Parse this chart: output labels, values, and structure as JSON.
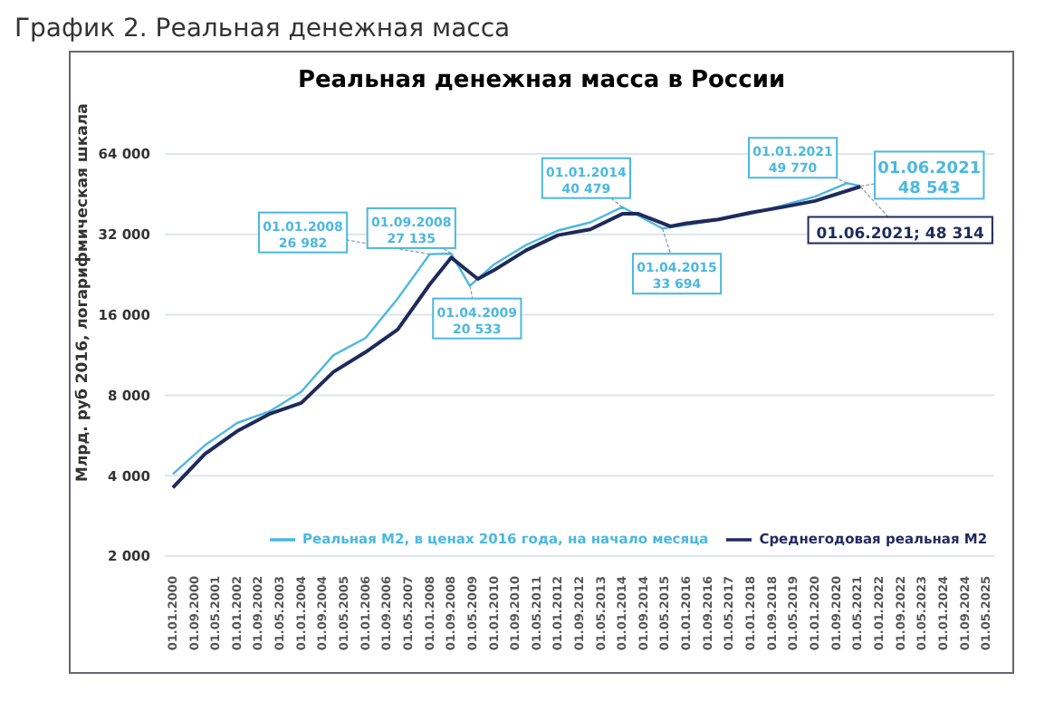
{
  "chart_data": {
    "type": "line",
    "title": "График 2. Реальная денежная масса",
    "subtitle": "Реальная денежная масса в России",
    "ylabel": "Млрд. руб 2016, логарифмическая шкала",
    "log": "y",
    "grid": "y",
    "legend": "bottom",
    "marker": "none",
    "line_style": "solid",
    "ylim": [
      2000,
      64000
    ],
    "yticks": [
      {
        "value": 2000,
        "label": "2 000"
      },
      {
        "value": 4000,
        "label": "4 000"
      },
      {
        "value": 8000,
        "label": "8 000"
      },
      {
        "value": 16000,
        "label": "16 000"
      },
      {
        "value": 32000,
        "label": "32 000"
      },
      {
        "value": 64000,
        "label": "64 000"
      }
    ],
    "xlim": [
      "1999-10-01",
      "2025-08-01"
    ],
    "xticks": [
      {
        "value": "2000-01-01",
        "label": "01.01.2000"
      },
      {
        "value": "2000-09-01",
        "label": "01.09.2000"
      },
      {
        "value": "2001-05-01",
        "label": "01.05.2001"
      },
      {
        "value": "2002-01-01",
        "label": "01.01.2002"
      },
      {
        "value": "2002-09-01",
        "label": "01.09.2002"
      },
      {
        "value": "2003-05-01",
        "label": "01.05.2003"
      },
      {
        "value": "2004-01-01",
        "label": "01.01.2004"
      },
      {
        "value": "2004-09-01",
        "label": "01.09.2004"
      },
      {
        "value": "2005-05-01",
        "label": "01.05.2005"
      },
      {
        "value": "2006-01-01",
        "label": "01.01.2006"
      },
      {
        "value": "2006-09-01",
        "label": "01.09.2006"
      },
      {
        "value": "2007-05-01",
        "label": "01.05.2007"
      },
      {
        "value": "2008-01-01",
        "label": "01.01.2008"
      },
      {
        "value": "2008-09-01",
        "label": "01.09.2008"
      },
      {
        "value": "2009-05-01",
        "label": "01.05.2009"
      },
      {
        "value": "2010-01-01",
        "label": "01.01.2010"
      },
      {
        "value": "2010-09-01",
        "label": "01.09.2010"
      },
      {
        "value": "2011-05-01",
        "label": "01.05.2011"
      },
      {
        "value": "2012-01-01",
        "label": "01.01.2012"
      },
      {
        "value": "2012-09-01",
        "label": "01.09.2012"
      },
      {
        "value": "2013-05-01",
        "label": "01.05.2013"
      },
      {
        "value": "2014-01-01",
        "label": "01.01.2014"
      },
      {
        "value": "2014-09-01",
        "label": "01.09.2014"
      },
      {
        "value": "2015-05-01",
        "label": "01.05.2015"
      },
      {
        "value": "2016-01-01",
        "label": "01.01.2016"
      },
      {
        "value": "2016-09-01",
        "label": "01.09.2016"
      },
      {
        "value": "2017-05-01",
        "label": "01.05.2017"
      },
      {
        "value": "2018-01-01",
        "label": "01.01.2018"
      },
      {
        "value": "2018-09-01",
        "label": "01.09.2018"
      },
      {
        "value": "2019-05-01",
        "label": "01.05.2019"
      },
      {
        "value": "2020-01-01",
        "label": "01.01.2020"
      },
      {
        "value": "2020-09-01",
        "label": "01.09.2020"
      },
      {
        "value": "2021-05-01",
        "label": "01.05.2021"
      },
      {
        "value": "2022-01-01",
        "label": "01.01.2022"
      },
      {
        "value": "2022-09-01",
        "label": "01.09.2022"
      },
      {
        "value": "2023-05-01",
        "label": "01.05.2023"
      },
      {
        "value": "2024-01-01",
        "label": "01.01.2024"
      },
      {
        "value": "2024-09-01",
        "label": "01.09.2024"
      },
      {
        "value": "2025-05-01",
        "label": "01.05.2025"
      }
    ],
    "series": [
      {
        "name": "Реальная М2, в ценах 2016 года, на начало месяца",
        "color": "#4bb8e0",
        "x": [
          "2000-01-01",
          "2001-01-01",
          "2002-01-01",
          "2003-01-01",
          "2004-01-01",
          "2005-01-01",
          "2006-01-01",
          "2007-01-01",
          "2008-01-01",
          "2008-09-01",
          "2009-04-01",
          "2010-01-01",
          "2011-01-01",
          "2012-01-01",
          "2013-01-01",
          "2014-01-01",
          "2015-04-01",
          "2016-01-01",
          "2017-01-01",
          "2018-01-01",
          "2019-01-01",
          "2020-01-01",
          "2021-01-01",
          "2021-06-01"
        ],
        "values": [
          4060,
          5200,
          6300,
          6950,
          8250,
          11300,
          13100,
          18400,
          26982,
          27135,
          20533,
          24700,
          29200,
          33100,
          35500,
          40479,
          33694,
          34700,
          36400,
          38200,
          41100,
          44300,
          49770,
          48543
        ]
      },
      {
        "name": "Среднегодовая реальная М2",
        "color": "#1f2a5c",
        "x": [
          "2000-01-01",
          "2001-01-01",
          "2002-01-01",
          "2003-01-01",
          "2004-01-01",
          "2005-01-01",
          "2006-01-01",
          "2007-01-01",
          "2008-01-01",
          "2008-09-01",
          "2009-07-01",
          "2010-01-01",
          "2011-01-01",
          "2012-01-01",
          "2013-01-01",
          "2014-01-01",
          "2014-07-01",
          "2015-07-01",
          "2016-01-01",
          "2017-01-01",
          "2018-01-01",
          "2019-01-01",
          "2020-01-01",
          "2021-06-01"
        ],
        "values": [
          3610,
          4830,
          5870,
          6800,
          7490,
          9780,
          11600,
          14100,
          20800,
          26200,
          21800,
          23500,
          27900,
          31800,
          33400,
          38200,
          38200,
          34300,
          35200,
          36400,
          38600,
          40500,
          42700,
          48314
        ]
      }
    ],
    "annotations": [
      {
        "text": "01.01.2008\n26 982",
        "x": "2008-01-01",
        "y": 26982
      },
      {
        "text": "01.09.2008\n27 135",
        "x": "2008-09-01",
        "y": 27135
      },
      {
        "text": "01.04.2009\n20 533",
        "x": "2009-04-01",
        "y": 20533
      },
      {
        "text": "01.01.2014\n40 479",
        "x": "2014-01-01",
        "y": 40479
      },
      {
        "text": "01.04.2015\n33 694",
        "x": "2015-04-01",
        "y": 33694
      },
      {
        "text": "01.01.2021\n49 770",
        "x": "2021-01-01",
        "y": 49770
      },
      {
        "text": "01.06.2021\n48 543",
        "x": "2021-06-01",
        "y": 48543
      },
      {
        "text": "01.06.2021;  48 314",
        "x": "2021-06-01",
        "y": 48314
      }
    ]
  }
}
